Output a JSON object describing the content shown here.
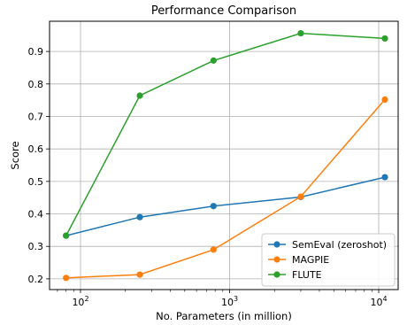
{
  "chart_data": {
    "type": "line",
    "title": "Performance Comparison",
    "xlabel": "No. Parameters (in million)",
    "ylabel": "Score",
    "xscale": "log",
    "xlim": [
      62,
      13500
    ],
    "ylim": [
      0.167,
      0.993
    ],
    "xticks": [
      {
        "value": 100,
        "base": "10",
        "exp": "2"
      },
      {
        "value": 1000,
        "base": "10",
        "exp": "3"
      },
      {
        "value": 10000,
        "base": "10",
        "exp": "4"
      }
    ],
    "yticks": [
      0.2,
      0.3,
      0.4,
      0.5,
      0.6,
      0.7,
      0.8,
      0.9
    ],
    "ytick_labels": [
      "0.2",
      "0.3",
      "0.4",
      "0.5",
      "0.6",
      "0.7",
      "0.8",
      "0.9"
    ],
    "grid": true,
    "legend_position": "bottom-right",
    "x": [
      80,
      250,
      780,
      3000,
      11000
    ],
    "series": [
      {
        "name": "SemEval (zeroshot)",
        "color": "#1f77b4",
        "values": [
          0.333,
          0.39,
          0.424,
          0.452,
          0.513
        ]
      },
      {
        "name": "MAGPIE",
        "color": "#ff7f0e",
        "values": [
          0.203,
          0.213,
          0.29,
          0.453,
          0.752
        ]
      },
      {
        "name": "FLUTE",
        "color": "#2ca02c",
        "values": [
          0.333,
          0.764,
          0.872,
          0.956,
          0.94
        ]
      }
    ]
  }
}
